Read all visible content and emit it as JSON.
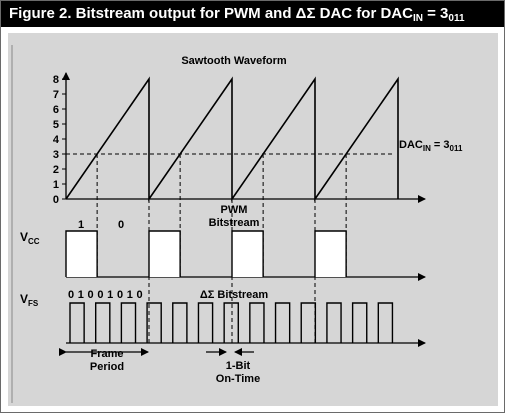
{
  "figure": {
    "title_prefix": "Figure 2. Bitstream output for PWM and ΔΣ DAC for DAC",
    "title_sub": "IN",
    "title_suffix": " = 3",
    "title_sub2": "011"
  },
  "sawtooth": {
    "title": "Sawtooth Waveform",
    "y_ticks": [
      "0",
      "1",
      "2",
      "3",
      "4",
      "5",
      "6",
      "7",
      "8"
    ],
    "y_min": 0,
    "y_max": 8,
    "threshold": 3,
    "cycles": 4,
    "dac_label_prefix": "DAC",
    "dac_label_sub": "IN",
    "dac_label_mid": " = 3",
    "dac_label_sub2": "011"
  },
  "pwm": {
    "title_line1": "PWM",
    "title_line2": "Bitstream",
    "label_main": "V",
    "label_sub": "CC",
    "bit_one": "1",
    "bit_zero": "0",
    "duty_cycle": 0.375,
    "pulses": 4
  },
  "delta_sigma": {
    "title": "ΔΣ Bitstream",
    "label_main": "V",
    "label_sub": "FS",
    "bits": "01001010",
    "pulses": 13,
    "frame_label_line1": "Frame",
    "frame_label_line2": "Period",
    "onbit_label_line1": "1-Bit",
    "onbit_label_line2": "On-Time"
  }
}
